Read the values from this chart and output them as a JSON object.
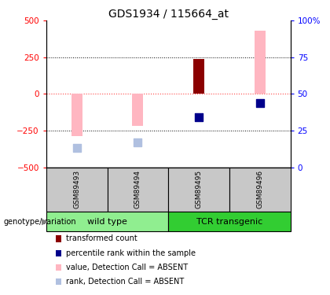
{
  "title": "GDS1934 / 115664_at",
  "samples": [
    "GSM89493",
    "GSM89494",
    "GSM89495",
    "GSM89496"
  ],
  "group_labels": [
    "wild type",
    "TCR transgenic"
  ],
  "bar_values": [
    null,
    null,
    240,
    null
  ],
  "bar_absent_values": [
    -290,
    -220,
    null,
    430
  ],
  "rank_values": [
    null,
    null,
    -160,
    -65
  ],
  "rank_absent_values": [
    -370,
    -330,
    null,
    null
  ],
  "ylim": [
    -500,
    500
  ],
  "yticks": [
    -500,
    -250,
    0,
    250,
    500
  ],
  "right_yticks": [
    0,
    25,
    50,
    75,
    100
  ],
  "right_ylim": [
    0,
    100
  ],
  "hlines_dotted": [
    250,
    -250
  ],
  "hline_zero": 0,
  "bar_color": "#8B0000",
  "bar_absent_color": "#FFB6C1",
  "rank_color": "#00008B",
  "rank_absent_color": "#B0C0E0",
  "zero_line_color": "#FF4444",
  "dotted_line_color": "#000000",
  "group_color_wt": "#90EE90",
  "group_color_tcr": "#32CD32",
  "sample_box_color": "#C8C8C8",
  "bar_width": 0.18,
  "rank_marker_size": 50,
  "legend_items": [
    {
      "label": "transformed count",
      "color": "#8B0000"
    },
    {
      "label": "percentile rank within the sample",
      "color": "#00008B"
    },
    {
      "label": "value, Detection Call = ABSENT",
      "color": "#FFB6C1"
    },
    {
      "label": "rank, Detection Call = ABSENT",
      "color": "#B0C0E0"
    }
  ]
}
